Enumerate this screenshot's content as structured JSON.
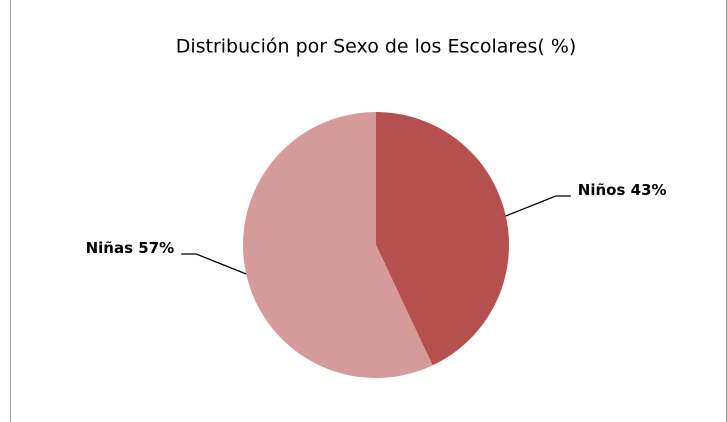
{
  "chart_data": {
    "type": "pie",
    "title": "Distribución por Sexo de los Escolares( %)",
    "categories": [
      "Niños",
      "Niñas"
    ],
    "values": [
      43,
      57
    ],
    "value_labels": [
      "43%",
      "57%"
    ],
    "colors": [
      "#b5504e",
      "#d59a9a"
    ]
  }
}
